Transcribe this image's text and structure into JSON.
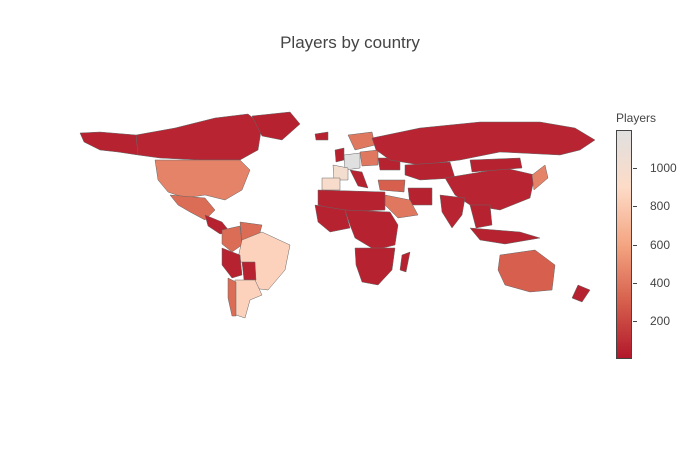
{
  "title": "Players by country",
  "colorbar": {
    "title": "Players",
    "ticks": [
      "1000",
      "800",
      "600",
      "400",
      "200"
    ],
    "colorscale": [
      "#b2182b",
      "#d6604d",
      "#f4a582",
      "#fddbc7",
      "#e0e0e0"
    ]
  },
  "chart_data": {
    "type": "choropleth",
    "title": "Players by country",
    "colorbar_title": "Players",
    "colorbar_range": [
      0,
      1200
    ],
    "colorbar_ticks": [
      200,
      400,
      600,
      800,
      1000
    ],
    "legend_placement": "right",
    "regions_estimated": [
      {
        "region": "Germany",
        "value": 1200
      },
      {
        "region": "France",
        "value": 1000
      },
      {
        "region": "Spain",
        "value": 950
      },
      {
        "region": "Brazil",
        "value": 850
      },
      {
        "region": "Argentina",
        "value": 850
      },
      {
        "region": "United States",
        "value": 450
      },
      {
        "region": "Canada",
        "value": 50
      },
      {
        "region": "Mexico",
        "value": 350
      },
      {
        "region": "Colombia",
        "value": 350
      },
      {
        "region": "Venezuela",
        "value": 350
      },
      {
        "region": "Chile",
        "value": 350
      },
      {
        "region": "Russia",
        "value": 50
      },
      {
        "region": "China",
        "value": 50
      },
      {
        "region": "India",
        "value": 50
      },
      {
        "region": "Japan",
        "value": 450
      },
      {
        "region": "Australia",
        "value": 300
      },
      {
        "region": "Saudi Arabia",
        "value": 400
      },
      {
        "region": "Turkey",
        "value": 300
      },
      {
        "region": "Poland",
        "value": 400
      },
      {
        "region": "Sweden",
        "value": 400
      }
    ]
  }
}
